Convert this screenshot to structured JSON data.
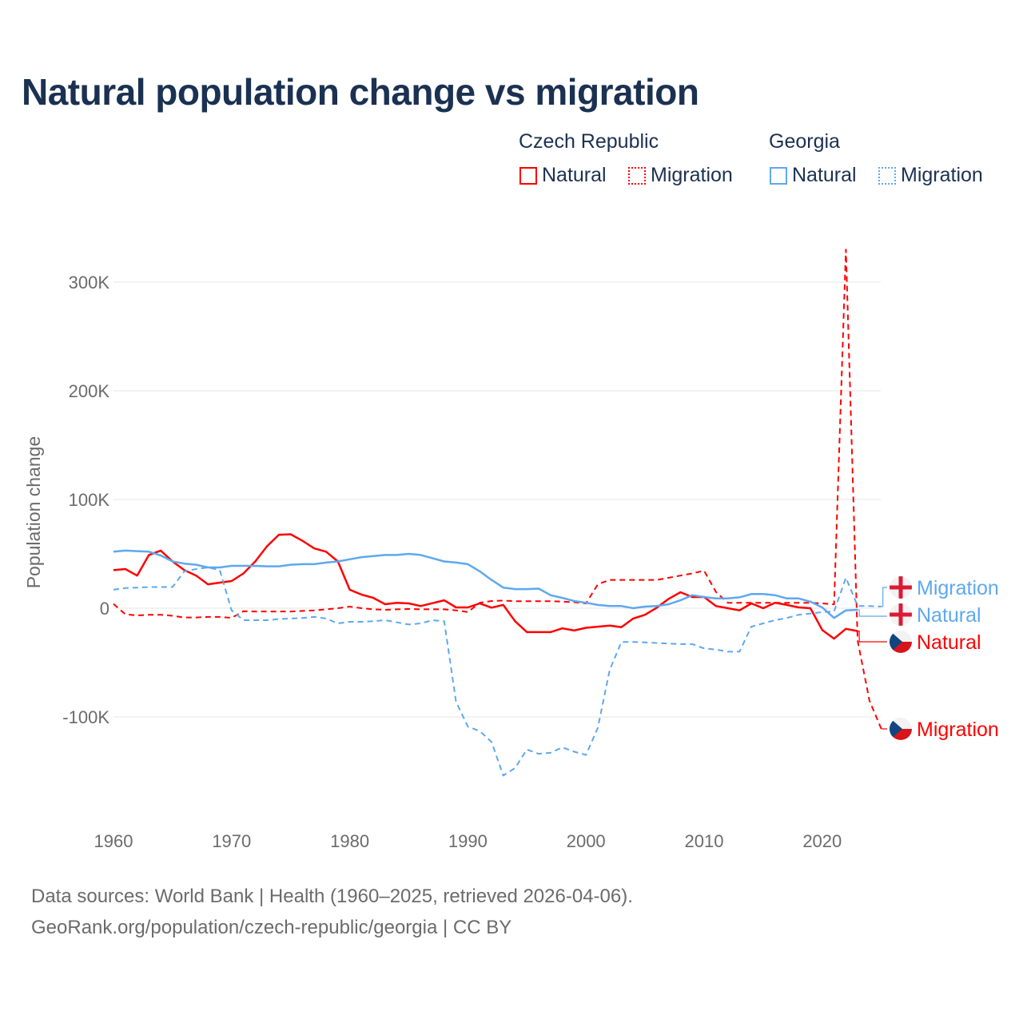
{
  "title": "Natural population change vs migration",
  "legend": {
    "groups": [
      {
        "name": "Czech Republic",
        "items": [
          {
            "label": "Natural",
            "style": "solid"
          },
          {
            "label": "Migration",
            "style": "dotted"
          }
        ],
        "color": "#ff0000"
      },
      {
        "name": "Georgia",
        "items": [
          {
            "label": "Natural",
            "style": "solid"
          },
          {
            "label": "Migration",
            "style": "dotted"
          }
        ],
        "color": "#5ea8ee"
      }
    ]
  },
  "footer": {
    "line1": "Data sources: World Bank | Health (1960–2025, retrieved 2026-04-06).",
    "line2": "GeoRank.org/population/czech-republic/georgia | CC BY"
  },
  "end_labels": {
    "ge_migration": "Migration",
    "ge_natural": "Natural",
    "cz_natural": "Natural",
    "cz_migration": "Migration"
  },
  "chart_data": {
    "type": "line",
    "title": "Natural population change vs migration",
    "xlabel": "",
    "ylabel": "Population change",
    "xlim": [
      1960,
      2025
    ],
    "ylim": [
      -165000,
      335000
    ],
    "x_ticks": [
      1960,
      1970,
      1980,
      1990,
      2000,
      2010,
      2020
    ],
    "x_tick_labels": [
      "1960",
      "1970",
      "1980",
      "1990",
      "2000",
      "2010",
      "2020"
    ],
    "y_ticks": [
      -100000,
      0,
      100000,
      200000,
      300000
    ],
    "y_tick_labels": [
      "-100K",
      "0",
      "100K",
      "200K",
      "300K"
    ],
    "grid": true,
    "legend_position": "top-right",
    "series": [
      {
        "name": "Czech Republic Natural",
        "color": "#ff0000",
        "dash": "solid",
        "start": 1960,
        "values_k": [
          35,
          36,
          30,
          49,
          53,
          43,
          35,
          30,
          22,
          23.5,
          25,
          32,
          43,
          57,
          67.6,
          68,
          62,
          55,
          52,
          43,
          17,
          12.5,
          9.5,
          3.7,
          5,
          4.4,
          2,
          4.6,
          7.3,
          0.7,
          0.7,
          4.4,
          0.5,
          3,
          -12,
          -22,
          -22,
          -22,
          -18.5,
          -20.5,
          -18,
          -17,
          -16,
          -17.5,
          -9.5,
          -6,
          0.5,
          8.6,
          14.7,
          10.3,
          10.3,
          2,
          0,
          -2,
          4.4,
          0,
          5,
          3,
          0.7,
          0,
          -20,
          -28,
          -19,
          -21
        ]
      },
      {
        "name": "Czech Republic Migration",
        "color": "#ff0000",
        "dash": "dashed",
        "start": 1960,
        "values_k": [
          4,
          -5.5,
          -6.7,
          -6,
          -6,
          -7,
          -8.5,
          -8.5,
          -8,
          -8,
          -8.9,
          -2.8,
          -3,
          -3,
          -3,
          -3,
          -2.5,
          -2,
          -1,
          0,
          1.5,
          0,
          -1,
          -1.5,
          -1,
          -0.7,
          -1,
          -1,
          -1,
          -2,
          -3.5,
          5,
          6.6,
          7,
          6.5,
          6.5,
          6.5,
          6.5,
          6,
          5.5,
          4.4,
          22,
          26,
          26,
          26,
          26,
          26,
          28,
          30,
          32,
          34.5,
          15,
          5,
          5,
          5,
          5,
          5,
          5,
          5,
          5,
          4.4,
          3.5,
          330,
          -30,
          -85,
          -111
        ]
      },
      {
        "name": "Georgia Natural",
        "color": "#5ea8ee",
        "dash": "solid",
        "start": 1960,
        "values_k": [
          52,
          53,
          52.5,
          52,
          48.5,
          43,
          41,
          40,
          37.5,
          37.5,
          39,
          39,
          39,
          38.5,
          38.5,
          40,
          40.5,
          40.5,
          42,
          43,
          45,
          47,
          48,
          49,
          49,
          50,
          49,
          46,
          43,
          42,
          40.5,
          34,
          26,
          19,
          17.6,
          17.6,
          18,
          12,
          9.5,
          6.6,
          5,
          3,
          2,
          2,
          0,
          1.5,
          2,
          3.7,
          7.3,
          12,
          10.3,
          9,
          9,
          10,
          13,
          13,
          12,
          9,
          9,
          6,
          0.7,
          -9,
          -2,
          -1.5
        ]
      },
      {
        "name": "Georgia Migration",
        "color": "#5ea8ee",
        "dash": "dashed",
        "start": 1960,
        "values_k": [
          17,
          18.5,
          19,
          19.5,
          19.5,
          19.5,
          34,
          36,
          37.5,
          35,
          -2,
          -11,
          -11,
          -11,
          -10,
          -9.5,
          -9,
          -8,
          -9.5,
          -14,
          -12.5,
          -12.5,
          -12,
          -11,
          -13,
          -15,
          -14,
          -11,
          -12,
          -86,
          -109,
          -113,
          -123,
          -154,
          -147,
          -130,
          -134,
          -133,
          -128,
          -132,
          -135,
          -110,
          -57,
          -31,
          -31,
          -31.5,
          -32,
          -32.5,
          -33,
          -33,
          -37,
          -38,
          -40,
          -40,
          -17,
          -14,
          -11,
          -9,
          -6,
          -5,
          -3.5,
          -3,
          28,
          2,
          2,
          1.5
        ]
      }
    ]
  }
}
